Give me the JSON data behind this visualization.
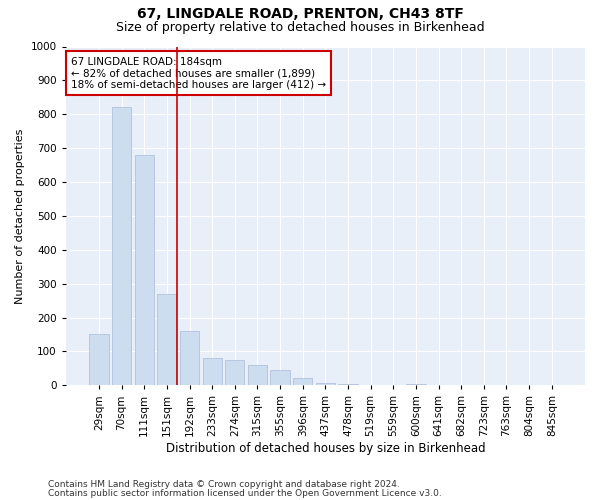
{
  "title1": "67, LINGDALE ROAD, PRENTON, CH43 8TF",
  "title2": "Size of property relative to detached houses in Birkenhead",
  "xlabel": "Distribution of detached houses by size in Birkenhead",
  "ylabel": "Number of detached properties",
  "categories": [
    "29sqm",
    "70sqm",
    "111sqm",
    "151sqm",
    "192sqm",
    "233sqm",
    "274sqm",
    "315sqm",
    "355sqm",
    "396sqm",
    "437sqm",
    "478sqm",
    "519sqm",
    "559sqm",
    "600sqm",
    "641sqm",
    "682sqm",
    "723sqm",
    "763sqm",
    "804sqm",
    "845sqm"
  ],
  "values": [
    150,
    820,
    680,
    270,
    160,
    80,
    75,
    60,
    45,
    22,
    8,
    3,
    1,
    0,
    5,
    0,
    0,
    0,
    0,
    0,
    0
  ],
  "bar_color": "#ccddf0",
  "bar_edge_color": "#aabbd8",
  "vline_color": "#cc0000",
  "annotation_text": "67 LINGDALE ROAD: 184sqm\n← 82% of detached houses are smaller (1,899)\n18% of semi-detached houses are larger (412) →",
  "annotation_box_color": "#ffffff",
  "annotation_box_edge": "#cc0000",
  "bg_color": "#e8eff8",
  "footnote1": "Contains HM Land Registry data © Crown copyright and database right 2024.",
  "footnote2": "Contains public sector information licensed under the Open Government Licence v3.0.",
  "ylim": [
    0,
    1000
  ],
  "yticks": [
    0,
    100,
    200,
    300,
    400,
    500,
    600,
    700,
    800,
    900,
    1000
  ],
  "title1_fontsize": 10,
  "title2_fontsize": 9,
  "xlabel_fontsize": 8.5,
  "ylabel_fontsize": 8,
  "tick_fontsize": 7.5,
  "annotation_fontsize": 7.5,
  "footnote_fontsize": 6.5
}
